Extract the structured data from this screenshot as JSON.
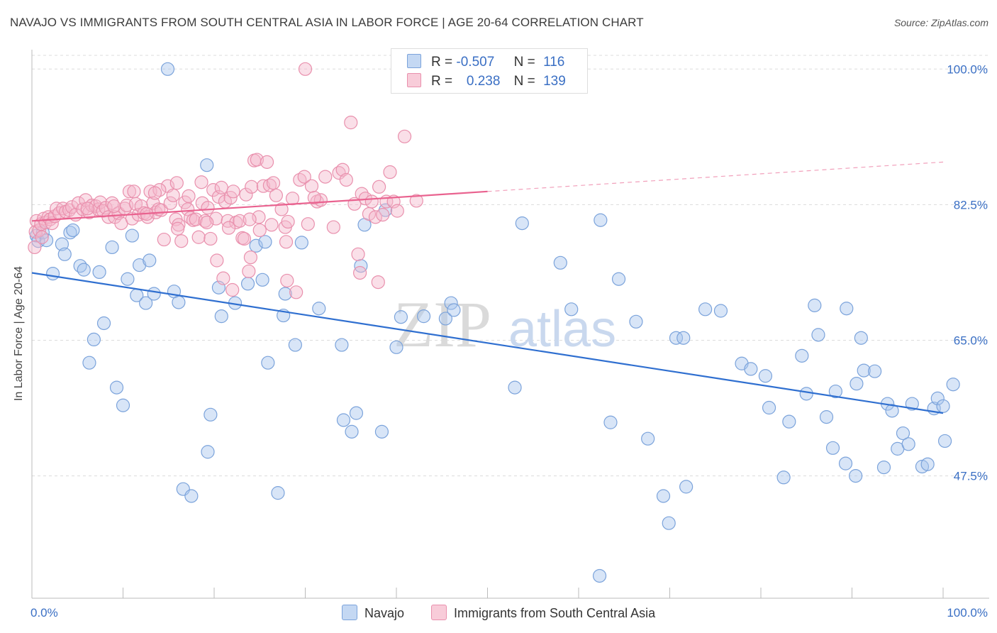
{
  "title": "NAVAJO VS IMMIGRANTS FROM SOUTH CENTRAL ASIA IN LABOR FORCE | AGE 20-64 CORRELATION CHART",
  "source": "Source: ZipAtlas.com",
  "watermark": "ZIPatlas",
  "legend": {
    "r_label": "R =",
    "n_label": "N =",
    "rows": [
      {
        "series": "Navajo",
        "r": "-0.507",
        "n": "116",
        "color": "#a9c5ee",
        "border": "#7ba3db"
      },
      {
        "series": "Immigrants from South Central Asia",
        "r": "0.238",
        "n": "139",
        "color": "#f5b8cb",
        "border": "#e990ad"
      }
    ]
  },
  "chart_data": {
    "type": "scatter",
    "title": "NAVAJO VS IMMIGRANTS FROM SOUTH CENTRAL ASIA IN LABOR FORCE | AGE 20-64 CORRELATION CHART",
    "xlabel": "",
    "ylabel": "In Labor Force | Age 20-64",
    "xlim": [
      0,
      100
    ],
    "ylim": [
      33,
      102
    ],
    "x_tick_labels": [
      "0.0%",
      "100.0%"
    ],
    "y_ticks": [
      47.5,
      65.0,
      82.5,
      100.0
    ],
    "y_tick_labels": [
      "47.5%",
      "65.0%",
      "82.5%",
      "100.0%"
    ],
    "grid": "horizontal dashed",
    "legend_placement": "bottom-center",
    "series": [
      {
        "name": "Navajo",
        "color": "#6f9ee0",
        "line_color": "#2f6fd0",
        "trend": {
          "x": [
            0,
            100
          ],
          "y": [
            73.7,
            55.6
          ],
          "style": "solid"
        },
        "points": [
          [
            0.5,
            78.5
          ],
          [
            0.7,
            77.8
          ],
          [
            1.2,
            78.9
          ],
          [
            1.6,
            77.9
          ],
          [
            2.3,
            73.6
          ],
          [
            3.3,
            77.4
          ],
          [
            3.6,
            76.1
          ],
          [
            4.2,
            78.9
          ],
          [
            4.5,
            79.2
          ],
          [
            5.3,
            74.6
          ],
          [
            5.7,
            74.1
          ],
          [
            7.4,
            73.8
          ],
          [
            7.9,
            67.2
          ],
          [
            6.8,
            65.1
          ],
          [
            6.3,
            62.1
          ],
          [
            8.8,
            77.0
          ],
          [
            9.3,
            58.9
          ],
          [
            10.0,
            56.6
          ],
          [
            10.5,
            72.9
          ],
          [
            11.0,
            78.5
          ],
          [
            11.5,
            70.8
          ],
          [
            11.8,
            74.7
          ],
          [
            12.5,
            69.8
          ],
          [
            12.9,
            75.3
          ],
          [
            13.4,
            71.0
          ],
          [
            14.9,
            100.0
          ],
          [
            15.6,
            71.3
          ],
          [
            16.1,
            69.9
          ],
          [
            16.6,
            45.8
          ],
          [
            17.5,
            44.9
          ],
          [
            19.2,
            87.6
          ],
          [
            19.3,
            50.6
          ],
          [
            19.6,
            55.4
          ],
          [
            20.5,
            71.8
          ],
          [
            20.8,
            68.1
          ],
          [
            22.3,
            69.8
          ],
          [
            23.7,
            72.3
          ],
          [
            24.6,
            77.2
          ],
          [
            25.3,
            72.8
          ],
          [
            25.6,
            77.7
          ],
          [
            25.9,
            62.1
          ],
          [
            27.0,
            45.3
          ],
          [
            27.6,
            68.2
          ],
          [
            27.8,
            71.0
          ],
          [
            28.9,
            64.4
          ],
          [
            29.6,
            77.6
          ],
          [
            31.5,
            69.1
          ],
          [
            34.0,
            64.4
          ],
          [
            34.2,
            54.7
          ],
          [
            35.1,
            53.2
          ],
          [
            35.6,
            55.6
          ],
          [
            36.1,
            74.6
          ],
          [
            36.5,
            79.9
          ],
          [
            38.4,
            53.2
          ],
          [
            38.8,
            81.8
          ],
          [
            40.0,
            64.1
          ],
          [
            40.5,
            68.0
          ],
          [
            43.0,
            68.1
          ],
          [
            45.4,
            67.8
          ],
          [
            46.0,
            69.8
          ],
          [
            46.3,
            68.9
          ],
          [
            47.3,
            100.0
          ],
          [
            53.0,
            58.9
          ],
          [
            53.8,
            80.1
          ],
          [
            58.0,
            75.0
          ],
          [
            59.2,
            69.0
          ],
          [
            62.4,
            80.5
          ],
          [
            63.5,
            54.4
          ],
          [
            64.4,
            72.9
          ],
          [
            66.3,
            67.4
          ],
          [
            67.6,
            52.3
          ],
          [
            69.3,
            44.9
          ],
          [
            69.9,
            41.4
          ],
          [
            70.7,
            65.3
          ],
          [
            71.5,
            65.3
          ],
          [
            71.8,
            46.1
          ],
          [
            73.9,
            69.0
          ],
          [
            75.6,
            68.8
          ],
          [
            77.9,
            62.0
          ],
          [
            78.9,
            61.3
          ],
          [
            80.5,
            60.4
          ],
          [
            80.9,
            56.3
          ],
          [
            82.5,
            47.3
          ],
          [
            83.1,
            54.5
          ],
          [
            84.5,
            63.0
          ],
          [
            85.0,
            58.1
          ],
          [
            85.9,
            69.5
          ],
          [
            86.3,
            65.7
          ],
          [
            87.2,
            55.1
          ],
          [
            87.9,
            51.1
          ],
          [
            88.2,
            58.4
          ],
          [
            89.3,
            49.1
          ],
          [
            90.4,
            47.5
          ],
          [
            89.4,
            69.1
          ],
          [
            90.5,
            59.4
          ],
          [
            91.0,
            65.3
          ],
          [
            91.3,
            61.1
          ],
          [
            92.5,
            61.0
          ],
          [
            93.5,
            48.6
          ],
          [
            93.9,
            56.8
          ],
          [
            94.4,
            55.9
          ],
          [
            95.0,
            51.0
          ],
          [
            95.6,
            53.0
          ],
          [
            96.2,
            51.6
          ],
          [
            96.6,
            56.8
          ],
          [
            97.7,
            48.7
          ],
          [
            98.3,
            49.0
          ],
          [
            99.0,
            56.2
          ],
          [
            99.4,
            57.5
          ],
          [
            100.0,
            56.5
          ],
          [
            100.2,
            52.0
          ],
          [
            101.1,
            59.3
          ],
          [
            62.3,
            34.6
          ]
        ]
      },
      {
        "name": "Immigrants from South Central Asia",
        "color": "#f2a3bd",
        "line_color": "#e9628f",
        "trend": {
          "x": [
            0,
            100
          ],
          "y": [
            80.4,
            88.0
          ],
          "style": "solid to 50, dashed beyond"
        },
        "points": [
          [
            0.3,
            77.0
          ],
          [
            0.4,
            79.0
          ],
          [
            0.5,
            80.4
          ],
          [
            0.8,
            79.2
          ],
          [
            1.0,
            80.0
          ],
          [
            1.1,
            78.3
          ],
          [
            1.3,
            80.7
          ],
          [
            1.5,
            80.2
          ],
          [
            1.8,
            80.9
          ],
          [
            2.0,
            80.6
          ],
          [
            2.2,
            80.1
          ],
          [
            2.5,
            81.0
          ],
          [
            2.7,
            82.0
          ],
          [
            3.0,
            81.4
          ],
          [
            3.4,
            82.0
          ],
          [
            3.7,
            81.6
          ],
          [
            4.1,
            81.8
          ],
          [
            4.4,
            82.2
          ],
          [
            4.8,
            81.2
          ],
          [
            5.1,
            82.7
          ],
          [
            5.6,
            81.9
          ],
          [
            5.9,
            83.1
          ],
          [
            6.3,
            81.5
          ],
          [
            6.6,
            82.4
          ],
          [
            7.0,
            82.3
          ],
          [
            7.3,
            81.9
          ],
          [
            7.5,
            82.8
          ],
          [
            7.8,
            81.7
          ],
          [
            8.1,
            82.1
          ],
          [
            8.4,
            80.9
          ],
          [
            8.8,
            82.7
          ],
          [
            9.1,
            80.9
          ],
          [
            9.5,
            81.4
          ],
          [
            9.8,
            80.1
          ],
          [
            10.2,
            82.0
          ],
          [
            10.4,
            82.4
          ],
          [
            10.7,
            84.2
          ],
          [
            11.0,
            80.7
          ],
          [
            11.4,
            82.6
          ],
          [
            11.7,
            81.2
          ],
          [
            12.0,
            82.3
          ],
          [
            12.3,
            81.4
          ],
          [
            12.7,
            80.9
          ],
          [
            13.0,
            84.2
          ],
          [
            13.3,
            82.7
          ],
          [
            13.6,
            81.5
          ],
          [
            13.9,
            81.9
          ],
          [
            14.2,
            81.8
          ],
          [
            14.5,
            78.0
          ],
          [
            14.9,
            84.9
          ],
          [
            15.2,
            82.7
          ],
          [
            15.5,
            83.7
          ],
          [
            15.8,
            80.6
          ],
          [
            16.1,
            79.9
          ],
          [
            16.4,
            77.8
          ],
          [
            16.8,
            82.8
          ],
          [
            17.1,
            81.9
          ],
          [
            17.4,
            80.8
          ],
          [
            17.7,
            80.5
          ],
          [
            18.0,
            80.6
          ],
          [
            18.3,
            78.3
          ],
          [
            18.7,
            82.7
          ],
          [
            19.0,
            80.4
          ],
          [
            19.3,
            82.1
          ],
          [
            19.6,
            78.1
          ],
          [
            19.9,
            84.4
          ],
          [
            20.2,
            80.7
          ],
          [
            20.5,
            83.5
          ],
          [
            20.8,
            84.7
          ],
          [
            21.2,
            82.9
          ],
          [
            21.5,
            80.4
          ],
          [
            21.8,
            83.4
          ],
          [
            22.1,
            84.2
          ],
          [
            22.4,
            80.2
          ],
          [
            22.8,
            80.4
          ],
          [
            23.1,
            78.2
          ],
          [
            23.5,
            83.8
          ],
          [
            23.8,
            73.9
          ],
          [
            24.1,
            84.8
          ],
          [
            24.4,
            88.2
          ],
          [
            24.7,
            88.3
          ],
          [
            25.0,
            79.2
          ],
          [
            25.4,
            84.9
          ],
          [
            25.8,
            88.0
          ],
          [
            26.1,
            85.0
          ],
          [
            26.5,
            85.3
          ],
          [
            26.8,
            83.7
          ],
          [
            27.4,
            81.9
          ],
          [
            27.8,
            79.6
          ],
          [
            28.1,
            80.3
          ],
          [
            28.6,
            83.3
          ],
          [
            29.4,
            85.7
          ],
          [
            29.9,
            86.1
          ],
          [
            30.3,
            80.0
          ],
          [
            30.7,
            84.9
          ],
          [
            31.3,
            82.9
          ],
          [
            31.7,
            83.1
          ],
          [
            32.2,
            86.1
          ],
          [
            33.1,
            79.6
          ],
          [
            33.7,
            86.6
          ],
          [
            34.1,
            87.0
          ],
          [
            34.5,
            85.7
          ],
          [
            35.0,
            93.1
          ],
          [
            35.4,
            82.6
          ],
          [
            35.8,
            76.1
          ],
          [
            36.2,
            83.9
          ],
          [
            36.6,
            83.3
          ],
          [
            37.0,
            81.3
          ],
          [
            37.3,
            82.9
          ],
          [
            37.7,
            80.9
          ],
          [
            38.1,
            84.8
          ],
          [
            38.5,
            81.2
          ],
          [
            38.9,
            82.9
          ],
          [
            39.3,
            86.7
          ],
          [
            39.7,
            82.9
          ],
          [
            40.1,
            81.7
          ],
          [
            20.3,
            75.3
          ],
          [
            21.0,
            73.0
          ],
          [
            22.0,
            71.5
          ],
          [
            23.3,
            78.1
          ],
          [
            24.0,
            75.7
          ],
          [
            28.0,
            72.7
          ],
          [
            29.0,
            71.2
          ],
          [
            38.0,
            72.5
          ],
          [
            40.9,
            91.3
          ],
          [
            42.2,
            83.0
          ],
          [
            30.0,
            100.0
          ],
          [
            31.0,
            83.4
          ],
          [
            17.2,
            83.6
          ],
          [
            18.6,
            85.4
          ],
          [
            36.0,
            73.7
          ],
          [
            11.2,
            84.2
          ],
          [
            12.6,
            81.3
          ],
          [
            9.0,
            82.3
          ],
          [
            14.0,
            84.4
          ],
          [
            15.9,
            85.3
          ],
          [
            21.6,
            79.5
          ],
          [
            26.3,
            79.9
          ],
          [
            27.9,
            77.7
          ],
          [
            6.1,
            82.0
          ],
          [
            19.2,
            80.2
          ],
          [
            24.9,
            80.9
          ],
          [
            13.5,
            84.0
          ],
          [
            16.0,
            79.4
          ],
          [
            23.9,
            80.6
          ]
        ]
      }
    ]
  }
}
